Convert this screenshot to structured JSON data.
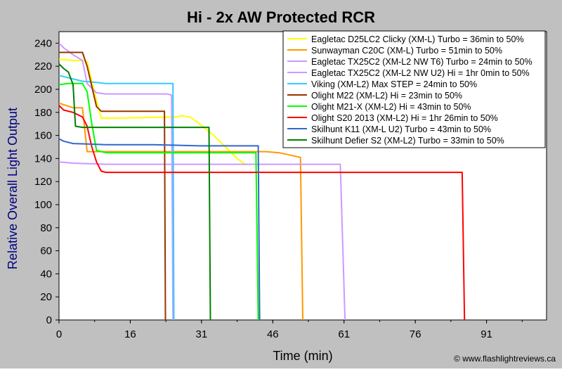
{
  "chart_data": {
    "type": "line",
    "title": "Hi - 2x AW Protected RCR",
    "xlabel": "Time (min)",
    "ylabel": "Relative Overall Light Output",
    "xlim": [
      0,
      104
    ],
    "ylim": [
      0,
      250
    ],
    "x_ticks": [
      "0",
      "16",
      "31",
      "46",
      "61",
      "76",
      "91"
    ],
    "x_tick_values": [
      0,
      15.2,
      30.4,
      45.6,
      60.8,
      76.0,
      91.2
    ],
    "y_ticks": [
      "0",
      "20",
      "40",
      "60",
      "80",
      "100",
      "120",
      "140",
      "160",
      "180",
      "200",
      "220",
      "240"
    ],
    "y_tick_values": [
      0,
      20,
      40,
      60,
      80,
      100,
      120,
      140,
      160,
      180,
      200,
      220,
      240
    ],
    "grid": false,
    "legend_position": "top-right",
    "copyright": "© www.flashlightreviews.ca",
    "background_color": "#c0c0c0",
    "plot_area_color": "#ffffff",
    "series": [
      {
        "name": "Eagletac D25LC2 Clicky (XM-L) Turbo = 36min to 50%",
        "color": "#ffff00",
        "points": [
          [
            0,
            226
          ],
          [
            3,
            225
          ],
          [
            5,
            225
          ],
          [
            6,
            224
          ],
          [
            8,
            190
          ],
          [
            9,
            175
          ],
          [
            12,
            175
          ],
          [
            25,
            176
          ],
          [
            26,
            177
          ],
          [
            28,
            176
          ],
          [
            30,
            170
          ],
          [
            33,
            160
          ],
          [
            36,
            148
          ],
          [
            38,
            140
          ],
          [
            40,
            134
          ]
        ]
      },
      {
        "name": "Sunwayman C20C (XM-L) Turbo = 51min to 50%",
        "color": "#ff9900",
        "points": [
          [
            0,
            188
          ],
          [
            3,
            184
          ],
          [
            5,
            184
          ],
          [
            6,
            146
          ],
          [
            8,
            146
          ],
          [
            10,
            146
          ],
          [
            30,
            146
          ],
          [
            44,
            146
          ],
          [
            47,
            145
          ],
          [
            51.5,
            141
          ],
          [
            52,
            0
          ]
        ]
      },
      {
        "name": "Eagletac TX25C2 (XM-L2 NW T6) Turbo = 24min to 50%",
        "color": "#cc99ff",
        "points": [
          [
            0,
            240
          ],
          [
            1,
            236
          ],
          [
            3,
            230
          ],
          [
            5,
            225
          ],
          [
            6,
            205
          ],
          [
            8,
            197
          ],
          [
            10,
            196
          ],
          [
            23,
            196
          ],
          [
            24,
            195
          ],
          [
            24.3,
            0
          ]
        ]
      },
      {
        "name": "Eagletac TX25C2 (XM-L2 NW U2) Hi = 1hr 0min to 50%",
        "color": "#cc99ff",
        "points": [
          [
            0,
            137
          ],
          [
            3,
            136
          ],
          [
            10,
            135
          ],
          [
            30,
            135
          ],
          [
            50,
            135
          ],
          [
            60,
            135
          ],
          [
            61,
            0
          ]
        ]
      },
      {
        "name": "Viking  (XM-L2) Max STEP = 24min to 50%",
        "color": "#33ccff",
        "points": [
          [
            0,
            212
          ],
          [
            2,
            210
          ],
          [
            5,
            207
          ],
          [
            8,
            206
          ],
          [
            10,
            205
          ],
          [
            20,
            205
          ],
          [
            24.3,
            205
          ],
          [
            24.5,
            0
          ]
        ]
      },
      {
        "name": "Olight M22 (XM-L2) Hi = 23min to 50%",
        "color": "#993300",
        "points": [
          [
            0,
            232
          ],
          [
            2,
            232
          ],
          [
            5,
            232
          ],
          [
            6,
            220
          ],
          [
            8,
            185
          ],
          [
            9,
            181
          ],
          [
            15,
            181
          ],
          [
            20,
            181
          ],
          [
            22.5,
            181
          ],
          [
            22.7,
            0
          ]
        ]
      },
      {
        "name": "Olight M21-X (XM-L2) Hi = 43min to 50%",
        "color": "#00ff00",
        "points": [
          [
            0,
            204
          ],
          [
            2,
            205
          ],
          [
            5,
            205
          ],
          [
            6,
            198
          ],
          [
            7,
            170
          ],
          [
            8,
            147
          ],
          [
            10,
            145
          ],
          [
            20,
            145
          ],
          [
            30,
            145
          ],
          [
            40,
            145
          ],
          [
            42,
            145
          ],
          [
            42.5,
            0
          ]
        ]
      },
      {
        "name": "Olight S20 2013 (XM-L2) Hi = 1hr 26min to 50%",
        "color": "#ff0000",
        "points": [
          [
            0,
            186
          ],
          [
            1,
            182
          ],
          [
            3,
            180
          ],
          [
            5,
            176
          ],
          [
            6,
            168
          ],
          [
            7,
            150
          ],
          [
            8,
            137
          ],
          [
            9,
            129
          ],
          [
            10,
            128
          ],
          [
            30,
            128
          ],
          [
            60,
            128
          ],
          [
            80,
            128
          ],
          [
            86,
            128
          ],
          [
            86.5,
            0
          ]
        ]
      },
      {
        "name": "Skilhunt K11 (XM-L U2) Turbo = 43min to 50%",
        "color": "#3366cc",
        "points": [
          [
            0,
            157
          ],
          [
            1,
            155
          ],
          [
            3,
            153
          ],
          [
            10,
            152
          ],
          [
            20,
            152
          ],
          [
            30,
            151
          ],
          [
            40,
            151
          ],
          [
            42.5,
            151
          ],
          [
            42.8,
            0
          ]
        ]
      },
      {
        "name": "Skilhunt Defier S2 (XM-L2) Turbo = 33min to 50%",
        "color": "#008000",
        "points": [
          [
            0,
            222
          ],
          [
            1,
            218
          ],
          [
            2,
            215
          ],
          [
            3,
            204
          ],
          [
            3.5,
            168
          ],
          [
            5,
            167
          ],
          [
            20,
            167
          ],
          [
            25,
            167
          ],
          [
            32,
            167
          ],
          [
            32.3,
            0
          ]
        ]
      }
    ]
  }
}
